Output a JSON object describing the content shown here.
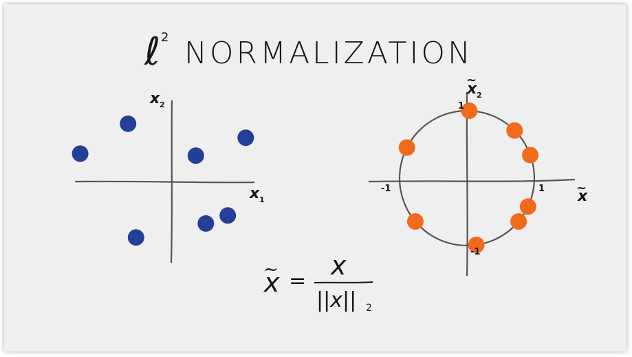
{
  "title": {
    "ell": "ℓ",
    "exponent": "2",
    "word": "NORMALIZATION"
  },
  "left_plot": {
    "x_label_letter": "x",
    "x_label_sub": "1",
    "y_label_letter": "x",
    "y_label_sub": "2",
    "point_color": "#243f96",
    "points": [
      {
        "x": -2.3,
        "y": 0.7
      },
      {
        "x": -1.1,
        "y": 1.45
      },
      {
        "x": 0.6,
        "y": 0.65
      },
      {
        "x": 1.85,
        "y": 1.1
      },
      {
        "x": -0.9,
        "y": -1.4
      },
      {
        "x": 0.85,
        "y": -1.05
      },
      {
        "x": 1.4,
        "y": -0.85
      }
    ]
  },
  "right_plot": {
    "x_label_letter": "x",
    "x_label_sub": "",
    "y_label_letter": "x",
    "y_label_sub": "2",
    "tick_pos_x": "1",
    "tick_neg_x": "-1",
    "tick_pos_y": "1",
    "tick_neg_y": "-1",
    "point_color": "#f26b1d",
    "circle_color": "#555555",
    "points_deg": [
      88,
      45,
      20,
      153,
      -25,
      -40,
      -140,
      -82
    ]
  },
  "formula": {
    "lhs": "x",
    "equals": "=",
    "numerator": "x",
    "denominator": "||x||",
    "denominator_sub": "2"
  }
}
